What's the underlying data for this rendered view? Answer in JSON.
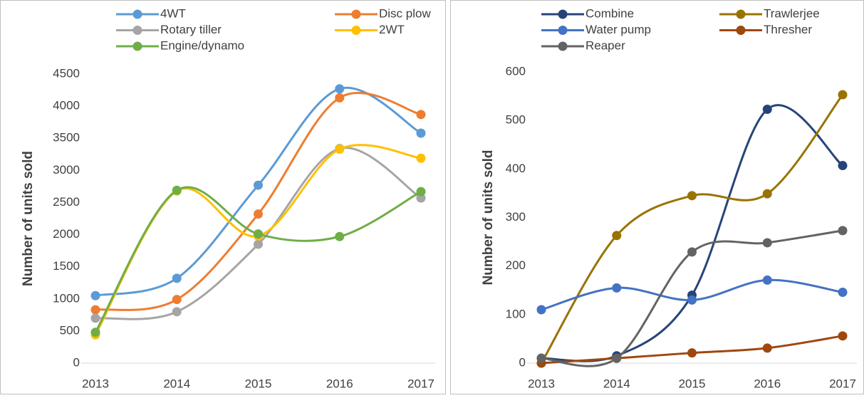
{
  "chart_data": [
    {
      "type": "line",
      "y_label": "Number of units sold",
      "categories": [
        "2013",
        "2014",
        "2015",
        "2016",
        "2017"
      ],
      "ylim": [
        0,
        4500
      ],
      "yticks": [
        0,
        500,
        1000,
        1500,
        2000,
        2500,
        3000,
        3500,
        4000,
        4500
      ],
      "smooth": true,
      "series": [
        {
          "name": "4WT",
          "color": "#5b9bd5",
          "values": [
            1050,
            1320,
            2770,
            4270,
            3580
          ]
        },
        {
          "name": "Disc plow",
          "color": "#ed7d31",
          "values": [
            830,
            990,
            2320,
            4130,
            3870
          ]
        },
        {
          "name": "Rotary tiller",
          "color": "#a5a5a5",
          "values": [
            700,
            800,
            1850,
            3340,
            2570
          ]
        },
        {
          "name": "2WT",
          "color": "#ffc000",
          "values": [
            440,
            2680,
            1980,
            3330,
            3190
          ]
        },
        {
          "name": "Engine/dynamo",
          "color": "#70ad47",
          "values": [
            480,
            2690,
            2010,
            1970,
            2670
          ]
        }
      ]
    },
    {
      "type": "line",
      "y_label": "Number of units sold",
      "categories": [
        "2013",
        "2014",
        "2015",
        "2016",
        "2017"
      ],
      "ylim": [
        0,
        600
      ],
      "yticks": [
        0,
        100,
        200,
        300,
        400,
        500,
        600
      ],
      "smooth": true,
      "series": [
        {
          "name": "Combine",
          "color": "#264478",
          "values": [
            10,
            15,
            140,
            523,
            407
          ]
        },
        {
          "name": "Trawlerjee",
          "color": "#997300",
          "values": [
            0,
            263,
            345,
            349,
            553
          ]
        },
        {
          "name": "Water pump",
          "color": "#4472c4",
          "values": [
            110,
            155,
            130,
            171,
            146
          ]
        },
        {
          "name": "Thresher",
          "color": "#9e480e",
          "values": [
            0,
            10,
            21,
            31,
            56
          ]
        },
        {
          "name": "Reaper",
          "color": "#636363",
          "values": [
            10,
            10,
            229,
            248,
            273
          ]
        }
      ]
    }
  ]
}
